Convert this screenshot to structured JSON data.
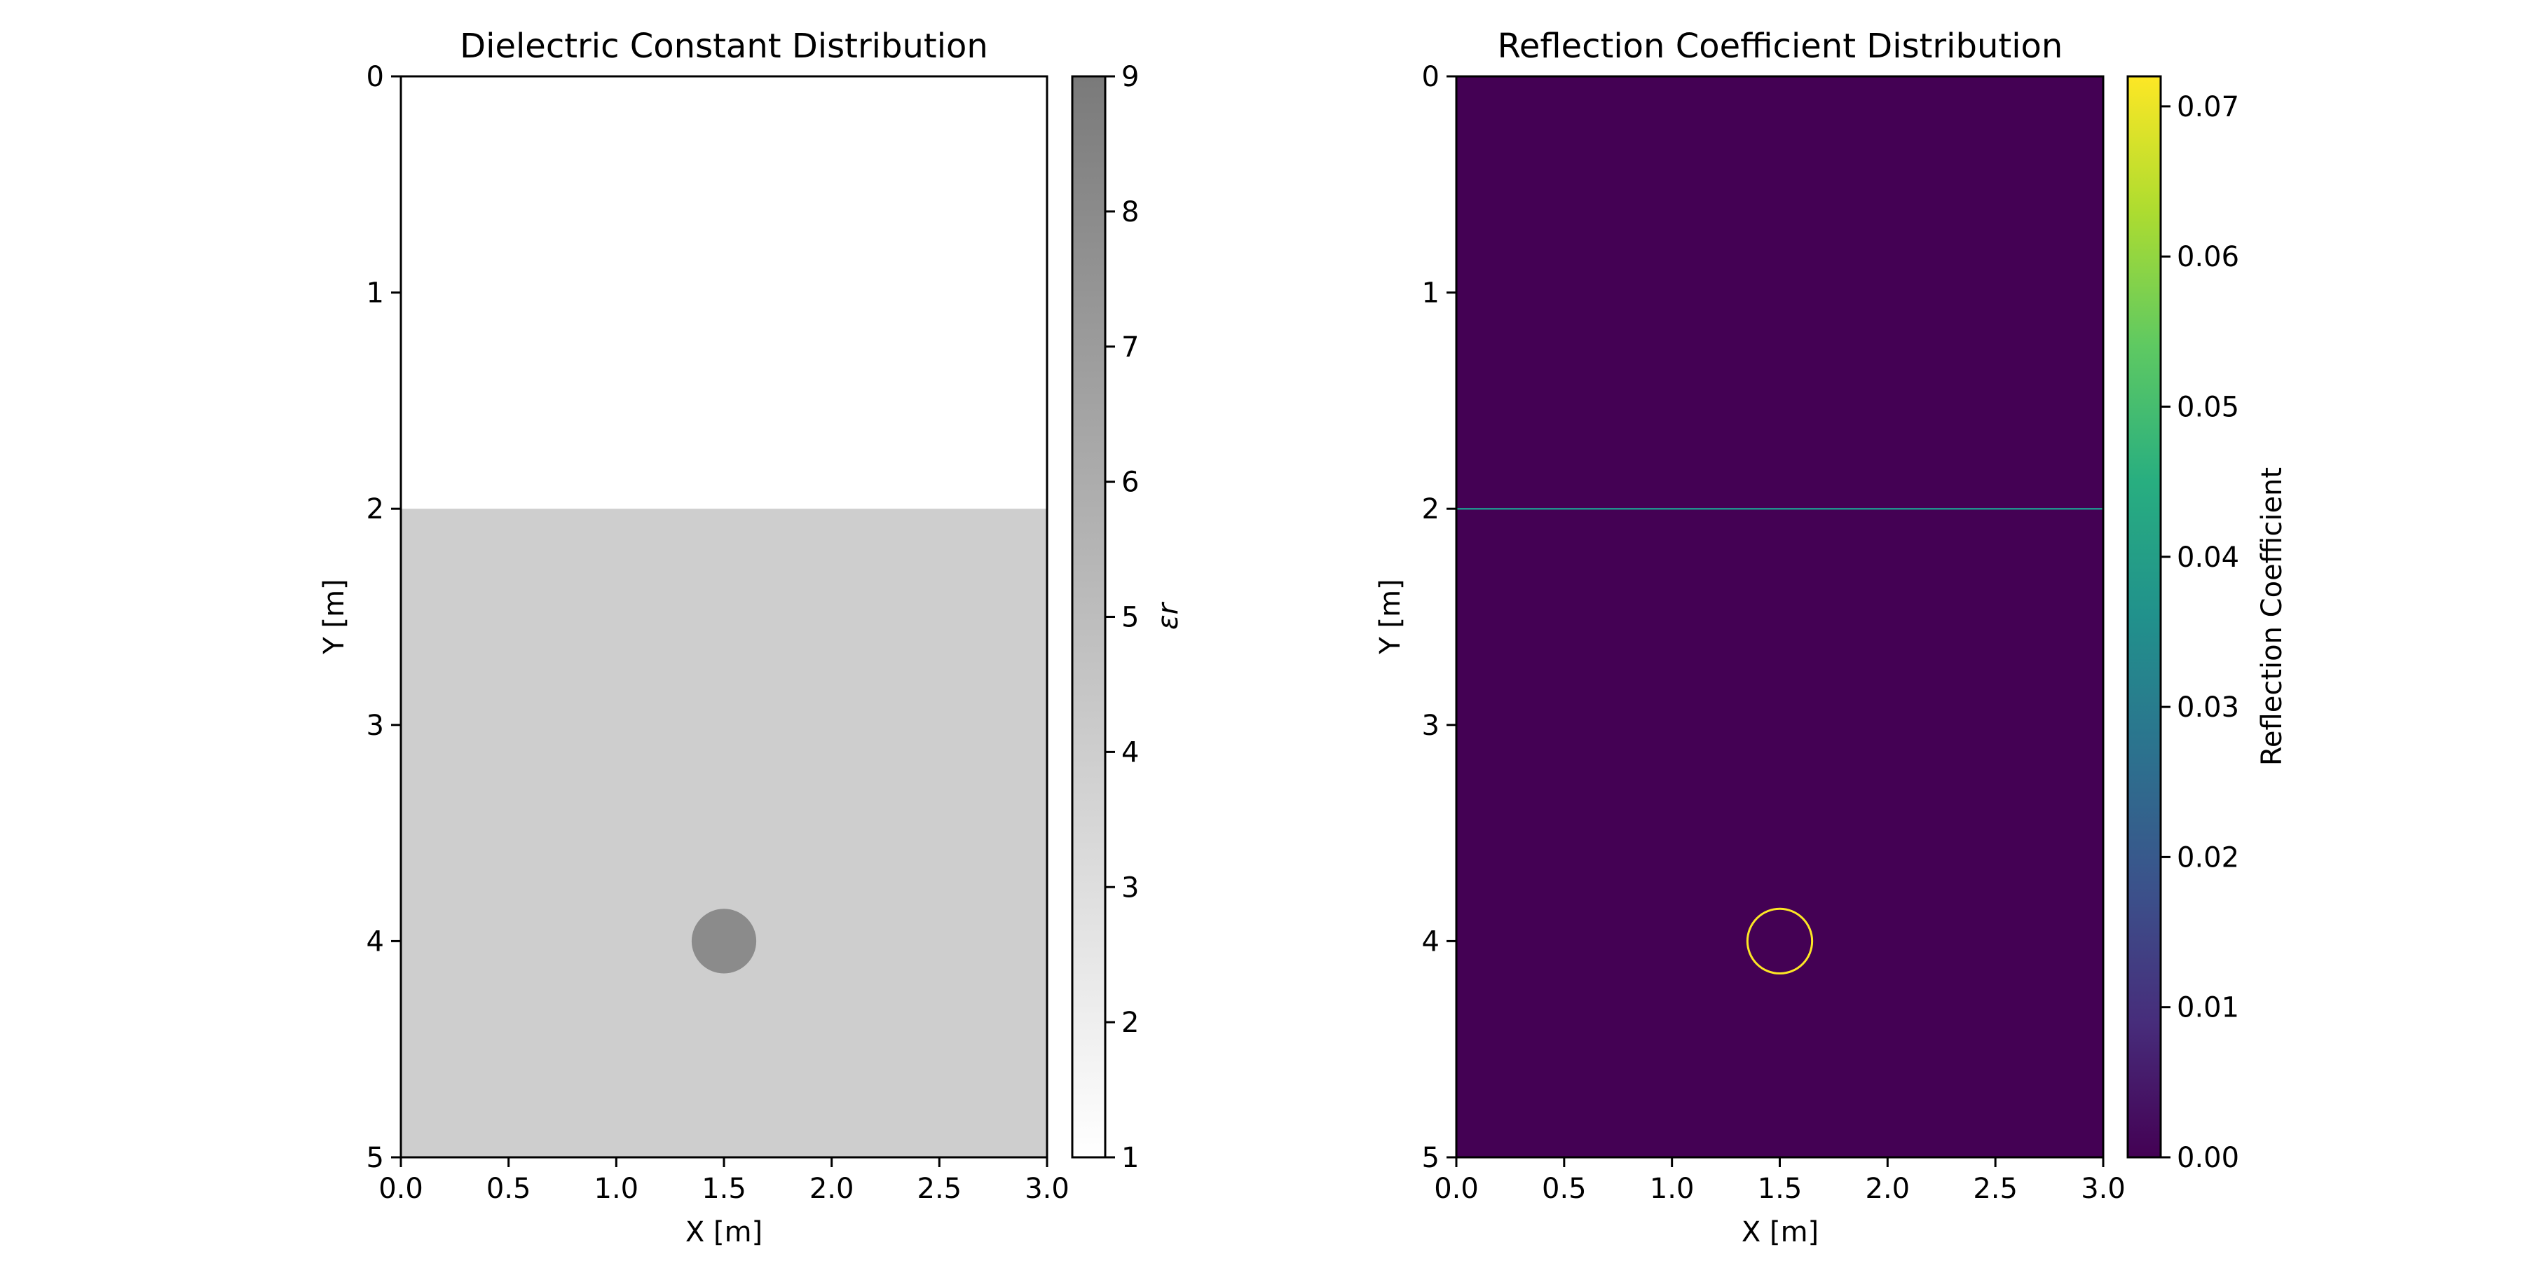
{
  "chart_data": [
    {
      "type": "heatmap",
      "title": "Dielectric Constant Distribution",
      "xlabel": "X [m]",
      "ylabel": "Y [m]",
      "xlim": [
        0,
        3
      ],
      "ylim": [
        5,
        0
      ],
      "xticks": [
        "0.0",
        "0.5",
        "1.0",
        "1.5",
        "2.0",
        "2.5",
        "3.0"
      ],
      "yticks": [
        "0",
        "1",
        "2",
        "3",
        "4",
        "5"
      ],
      "colormap": "Greys",
      "colorbar": {
        "label": "εr",
        "range": [
          1,
          9
        ],
        "ticks": [
          "1",
          "2",
          "3",
          "4",
          "5",
          "6",
          "7",
          "8",
          "9"
        ]
      },
      "regions": [
        {
          "kind": "layer",
          "y_range": [
            0,
            2
          ],
          "value": 1
        },
        {
          "kind": "layer",
          "y_range": [
            2,
            5
          ],
          "value": 4
        },
        {
          "kind": "disk",
          "center": [
            1.5,
            4.0
          ],
          "radius": 0.15,
          "value": 8
        }
      ]
    },
    {
      "type": "heatmap",
      "title": "Reflection Coefficient Distribution",
      "xlabel": "X [m]",
      "ylabel": "Y [m]",
      "xlim": [
        0,
        3
      ],
      "ylim": [
        5,
        0
      ],
      "xticks": [
        "0.0",
        "0.5",
        "1.0",
        "1.5",
        "2.0",
        "2.5",
        "3.0"
      ],
      "yticks": [
        "0",
        "1",
        "2",
        "3",
        "4",
        "5"
      ],
      "colormap": "viridis",
      "colorbar": {
        "label": "Reflection Coefficient",
        "range": [
          0,
          0.072
        ],
        "ticks": [
          "0.00",
          "0.01",
          "0.02",
          "0.03",
          "0.04",
          "0.05",
          "0.06",
          "0.07"
        ]
      },
      "background_value": 0.0,
      "features": [
        {
          "kind": "interface",
          "y": 2.0,
          "value": 0.036
        },
        {
          "kind": "ring",
          "center": [
            1.5,
            4.0
          ],
          "radius": 0.15,
          "value": 0.072
        }
      ]
    }
  ]
}
